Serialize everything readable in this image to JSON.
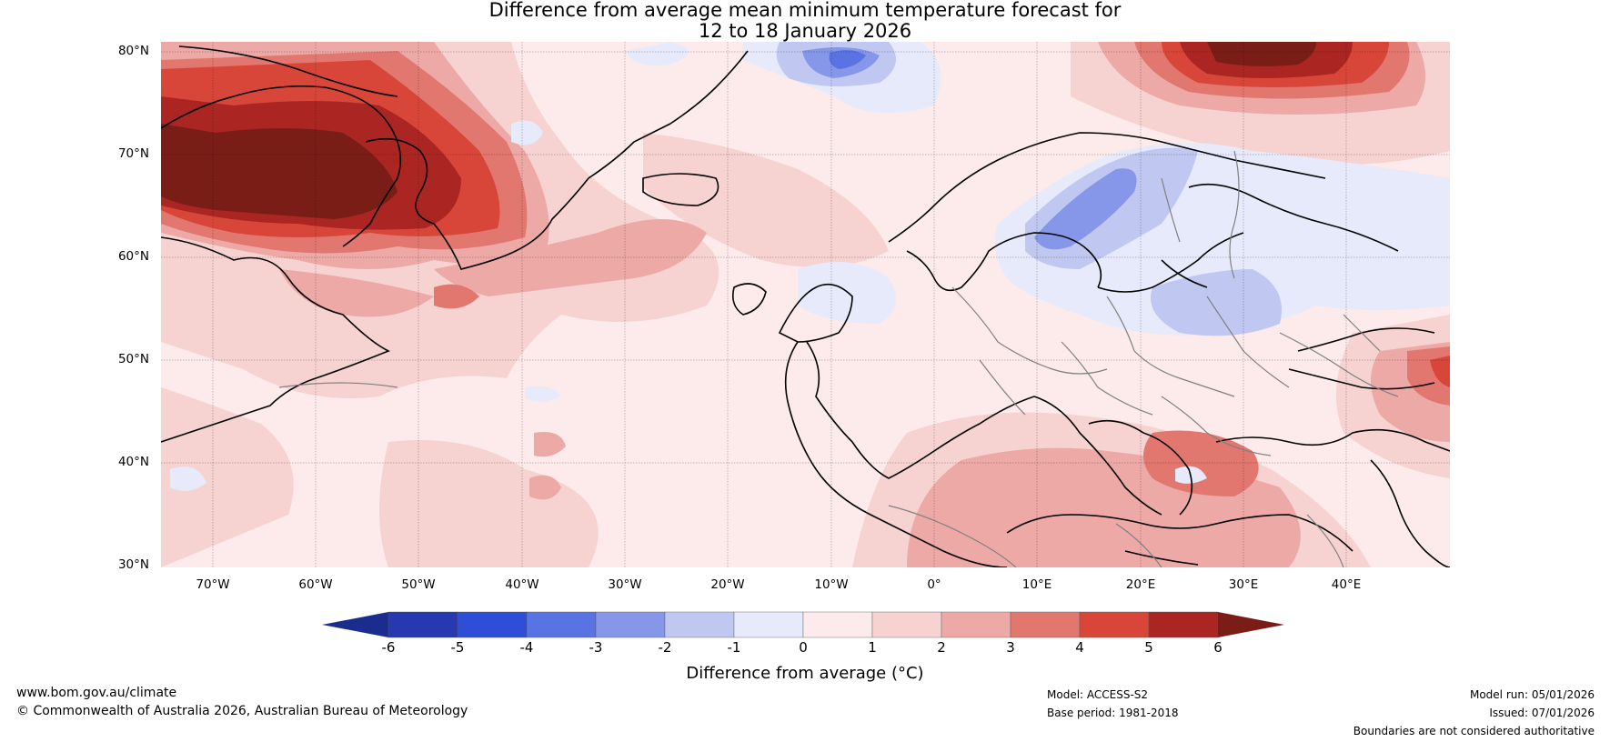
{
  "title_line1": "Difference from average mean minimum temperature forecast for",
  "title_line2": "12 to 18 January 2026",
  "map": {
    "lat_labels": [
      "80°N",
      "70°N",
      "60°N",
      "50°N",
      "40°N",
      "30°N"
    ],
    "lon_labels": [
      "70°W",
      "60°W",
      "50°W",
      "40°W",
      "30°W",
      "20°W",
      "10°W",
      "0°",
      "10°E",
      "20°E",
      "30°E",
      "40°E"
    ]
  },
  "colorbar": {
    "title": "Difference from average (°C)",
    "ticks": [
      "-6",
      "-5",
      "-4",
      "-3",
      "-2",
      "-1",
      "0",
      "1",
      "2",
      "3",
      "4",
      "5",
      "6"
    ],
    "colors": [
      "#1a2d8e",
      "#2639b0",
      "#2f4ed8",
      "#5a73e2",
      "#8696e8",
      "#c0c8f1",
      "#e6eafb",
      "#fcebea",
      "#f6d2d1",
      "#eda9a6",
      "#e27770",
      "#d8463a",
      "#ab2623",
      "#7a1d17"
    ]
  },
  "footer": {
    "website": "www.bom.gov.au/climate",
    "copyright": "© Commonwealth of Australia 2026, Australian Bureau of Meteorology",
    "model": "Model: ACCESS-S2",
    "base_period": "Base period: 1981-2018",
    "model_run": "Model run: 05/01/2026",
    "issued": "Issued: 07/01/2026",
    "disclaimer": "Boundaries are not considered authoritative"
  }
}
